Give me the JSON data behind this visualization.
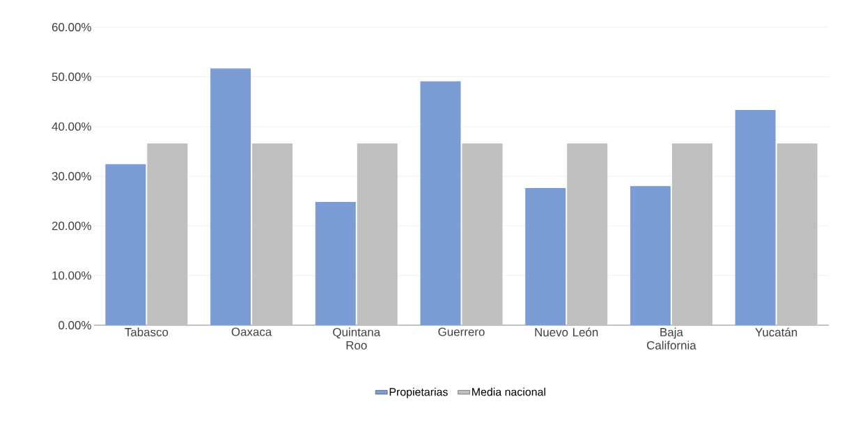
{
  "chart_data": {
    "type": "bar",
    "categories": [
      "Tabasco",
      "Oaxaca",
      "Quintana Roo",
      "Guerrero",
      "Nuevo León",
      "Baja California",
      "Yucatán"
    ],
    "series": [
      {
        "name": "Propietarias",
        "color": "#7b9cd4",
        "values": [
          32.4,
          51.7,
          24.8,
          49.1,
          27.6,
          28.0,
          43.3
        ]
      },
      {
        "name": "Media nacional",
        "color": "#bfbfbf",
        "values": [
          36.6,
          36.6,
          36.6,
          36.6,
          36.6,
          36.6,
          36.6
        ]
      }
    ],
    "ylim": [
      0,
      60
    ],
    "yticks": [
      {
        "value": 0,
        "label": "0.00%"
      },
      {
        "value": 10,
        "label": "10.00%"
      },
      {
        "value": 20,
        "label": "20.00%"
      },
      {
        "value": 30,
        "label": "30.00%"
      },
      {
        "value": 40,
        "label": "40.00%"
      },
      {
        "value": 50,
        "label": "50.00%"
      },
      {
        "value": 60,
        "label": "60.00%"
      }
    ],
    "grid": "y",
    "legend": "bottom"
  }
}
